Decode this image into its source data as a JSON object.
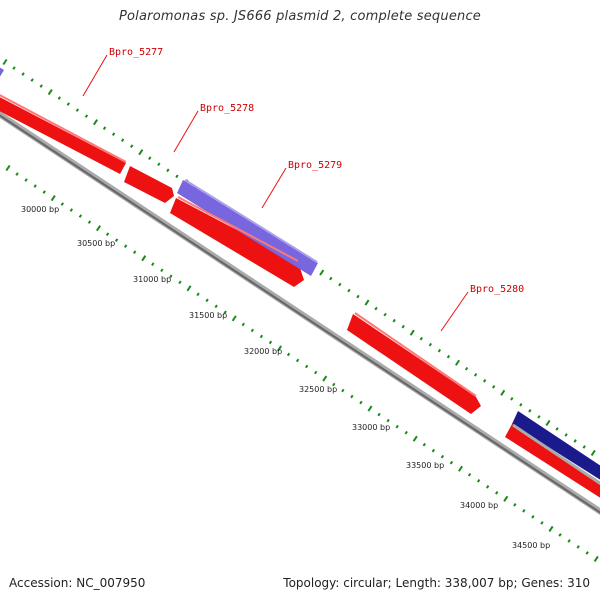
{
  "title": "Polaromonas sp. JS666 plasmid 2, complete sequence",
  "accession_text": "Accession: NC_007950",
  "summary_text": "Topology: circular; Length: 338,007 bp; Genes: 310",
  "colors": {
    "backbone": "#8c8c8c",
    "forward_gene": "#ee1111",
    "reverse_gene": "#7766dd",
    "dark_gene": "#1a1a8c",
    "tick": "#1a8a1a",
    "label_line": "#ee1111",
    "label_text": "#cc0000"
  },
  "ticks": [
    {
      "bp": 30000,
      "label": "30000 bp"
    },
    {
      "bp": 30500,
      "label": "30500 bp"
    },
    {
      "bp": 31000,
      "label": "31000 bp"
    },
    {
      "bp": 31500,
      "label": "31500 bp"
    },
    {
      "bp": 32000,
      "label": "32000 bp"
    },
    {
      "bp": 32500,
      "label": "32500 bp"
    },
    {
      "bp": 33000,
      "label": "33000 bp"
    },
    {
      "bp": 33500,
      "label": "33500 bp"
    },
    {
      "bp": 34000,
      "label": "34000 bp"
    },
    {
      "bp": 34500,
      "label": "34500 bp"
    }
  ],
  "gene_labels": [
    "Bpro_5277",
    "Bpro_5278",
    "Bpro_5279",
    "Bpro_5280"
  ]
}
